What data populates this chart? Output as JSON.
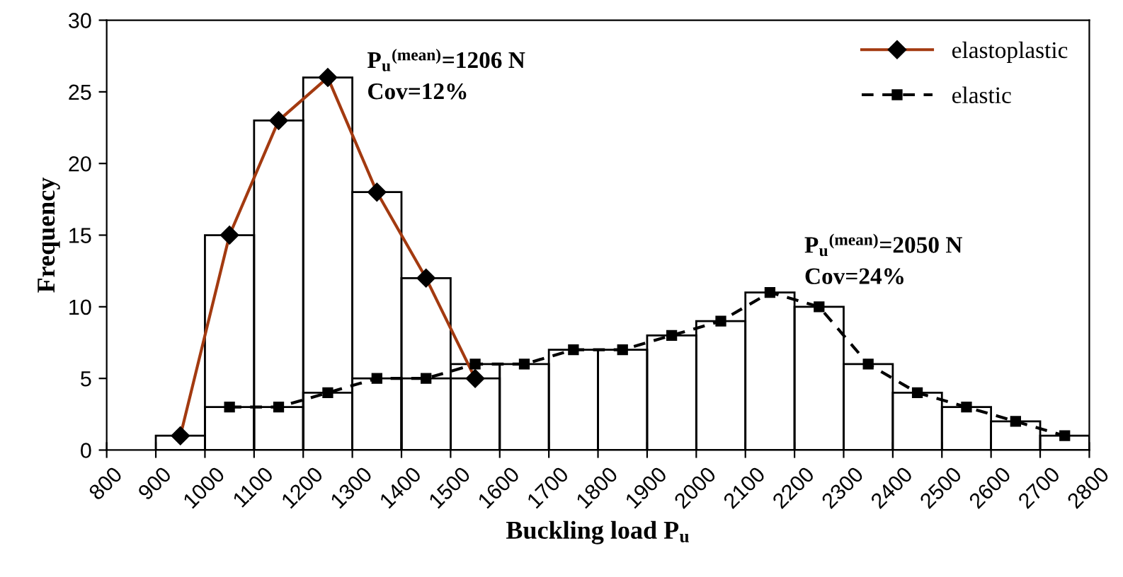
{
  "chart_data": {
    "type": "histogram",
    "xlabel": "Buckling load P$_{u}$",
    "ylabel": "Frequency",
    "xlim": [
      800,
      2800
    ],
    "xticks": [
      800,
      900,
      1000,
      1100,
      1200,
      1300,
      1400,
      1500,
      1600,
      1700,
      1800,
      1900,
      2000,
      2100,
      2200,
      2300,
      2400,
      2500,
      2600,
      2700,
      2800
    ],
    "ylim": [
      0,
      30
    ],
    "yticks": [
      0,
      5,
      10,
      15,
      20,
      25,
      30
    ],
    "grid": false,
    "legend": "top right",
    "series": [
      {
        "bins": [
          900,
          1000,
          1100,
          1200,
          1300,
          1400,
          1500,
          1600
        ],
        "values": [
          1,
          15,
          23,
          26,
          18,
          12,
          5
        ]
      },
      {
        "bins": [
          1000,
          1100,
          1200,
          1300,
          1400,
          1500,
          1600,
          1700,
          1800,
          1900,
          2000,
          2100,
          2200,
          2300,
          2400,
          2500,
          2600,
          2700,
          2800
        ],
        "values": [
          3,
          3,
          4,
          5,
          5,
          6,
          6,
          7,
          7,
          8,
          9,
          11,
          10,
          6,
          4,
          3,
          2,
          1
        ]
      },
      {
        "type": "line",
        "name": "elastoplastic",
        "color": "#a33a10",
        "marker": "diamond",
        "line_style": "solid",
        "x": [
          950,
          1050,
          1150,
          1250,
          1350,
          1450,
          1550
        ],
        "values": [
          1,
          15,
          23,
          26,
          18,
          12,
          5
        ]
      },
      {
        "type": "line",
        "name": "elastic",
        "color": "#000000",
        "marker": "square",
        "line_style": "dashed",
        "x": [
          1050,
          1150,
          1250,
          1350,
          1450,
          1550,
          1650,
          1750,
          1850,
          1950,
          2050,
          2150,
          2250,
          2350,
          2450,
          2550,
          2650,
          2750
        ],
        "values": [
          3,
          3,
          4,
          5,
          5,
          6,
          6,
          7,
          7,
          8,
          9,
          11,
          10,
          6,
          4,
          3,
          2,
          1
        ]
      }
    ],
    "annotations": [
      "P$_{u}$$^{(mean)}$=1206 N\nCov=12%",
      "P$_{u}$$^{(mean)}$=2050 N\nCov=24%"
    ]
  }
}
